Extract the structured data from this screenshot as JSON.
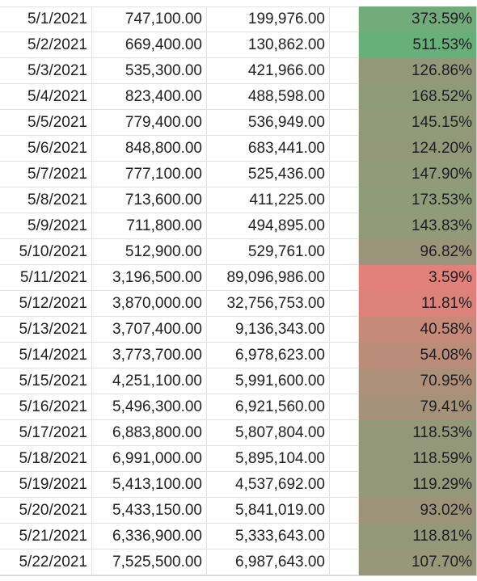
{
  "rows": [
    {
      "date": "5/1/2021",
      "a": "747,100.00",
      "b": "199,976.00",
      "pct": "373.59%",
      "color": "#72ab7c"
    },
    {
      "date": "5/2/2021",
      "a": "669,400.00",
      "b": "130,862.00",
      "pct": "511.53%",
      "color": "#67b07c"
    },
    {
      "date": "5/3/2021",
      "a": "535,300.00",
      "b": "421,966.00",
      "pct": "126.86%",
      "color": "#94987a"
    },
    {
      "date": "5/4/2021",
      "a": "823,400.00",
      "b": "488,598.00",
      "pct": "168.52%",
      "color": "#8e9b7a"
    },
    {
      "date": "5/5/2021",
      "a": "779,400.00",
      "b": "536,949.00",
      "pct": "145.15%",
      "color": "#929a7a"
    },
    {
      "date": "5/6/2021",
      "a": "848,800.00",
      "b": "683,441.00",
      "pct": "124.20%",
      "color": "#94987a"
    },
    {
      "date": "5/7/2021",
      "a": "777,100.00",
      "b": "525,436.00",
      "pct": "147.90%",
      "color": "#919a7a"
    },
    {
      "date": "5/8/2021",
      "a": "713,600.00",
      "b": "411,225.00",
      "pct": "173.53%",
      "color": "#8e9c7a"
    },
    {
      "date": "5/9/2021",
      "a": "711,800.00",
      "b": "494,895.00",
      "pct": "143.83%",
      "color": "#929a7a"
    },
    {
      "date": "5/10/2021",
      "a": "512,900.00",
      "b": "529,761.00",
      "pct": "96.82%",
      "color": "#9a947a"
    },
    {
      "date": "5/11/2021",
      "a": "3,196,500.00",
      "b": "89,096,986.00",
      "pct": "3.59%",
      "color": "#e2807a"
    },
    {
      "date": "5/12/2021",
      "a": "3,870,000.00",
      "b": "32,756,753.00",
      "pct": "11.81%",
      "color": "#dc827a"
    },
    {
      "date": "5/13/2021",
      "a": "3,707,400.00",
      "b": "9,136,343.00",
      "pct": "40.58%",
      "color": "#c58a7a"
    },
    {
      "date": "5/14/2021",
      "a": "3,773,700.00",
      "b": "6,978,623.00",
      "pct": "54.08%",
      "color": "#b98d7a"
    },
    {
      "date": "5/15/2021",
      "a": "4,251,100.00",
      "b": "5,991,600.00",
      "pct": "70.95%",
      "color": "#ad907a"
    },
    {
      "date": "5/16/2021",
      "a": "5,496,300.00",
      "b": "6,921,560.00",
      "pct": "79.41%",
      "color": "#a5927a"
    },
    {
      "date": "5/17/2021",
      "a": "6,883,800.00",
      "b": "5,807,804.00",
      "pct": "118.53%",
      "color": "#94987a"
    },
    {
      "date": "5/18/2021",
      "a": "6,991,000.00",
      "b": "5,895,104.00",
      "pct": "118.59%",
      "color": "#94987a"
    },
    {
      "date": "5/19/2021",
      "a": "5,413,100.00",
      "b": "4,537,692.00",
      "pct": "119.29%",
      "color": "#94987a"
    },
    {
      "date": "5/20/2021",
      "a": "5,433,150.00",
      "b": "5,841,019.00",
      "pct": "93.02%",
      "color": "#9c947a"
    },
    {
      "date": "5/21/2021",
      "a": "6,336,900.00",
      "b": "5,333,643.00",
      "pct": "118.81%",
      "color": "#94987a"
    },
    {
      "date": "5/22/2021",
      "a": "7,525,500.00",
      "b": "6,987,643.00",
      "pct": "107.70%",
      "color": "#97977a"
    }
  ]
}
